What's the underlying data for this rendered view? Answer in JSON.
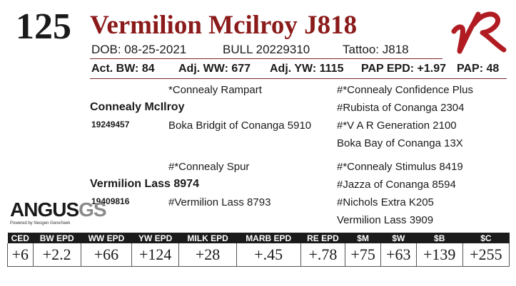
{
  "header": {
    "lot_number": "125",
    "animal_name": "Vermilion Mcilroy J818"
  },
  "info": {
    "dob": "DOB:   08-25-2021",
    "sex_reg": "BULL   20229310",
    "tattoo": "Tattoo:    J818"
  },
  "stats": {
    "act_bw": "Act. BW: 84",
    "adj_ww": "Adj. WW: 677",
    "adj_yw": "Adj. YW: 1115",
    "pap_epd": "PAP EPD: +1.97",
    "pap": "PAP: 48"
  },
  "pedigree": {
    "sire": {
      "name": "Connealy McIlroy",
      "reg": "19249457"
    },
    "sire_sire": "*Connealy Rampart",
    "sire_dam": "Boka Bridgit of Conanga 5910",
    "sire_sire_sire": "#*Connealy Confidence Plus",
    "sire_sire_dam": "#Rubista of Conanga 2304",
    "sire_dam_sire": "#*V A R Generation 2100",
    "sire_dam_dam": "Boka Bay of Conanga 13X",
    "dam": {
      "name": "Vermilion Lass 8974",
      "reg": "19409816"
    },
    "dam_sire": "#*Connealy Spur",
    "dam_dam": "#Vermilion Lass 8793",
    "dam_sire_sire": "#*Connealy Stimulus 8419",
    "dam_sire_dam": "#Jazza of Conanga 8594",
    "dam_dam_sire": "#Nichols Extra K205",
    "dam_dam_dam": "Vermilion Lass 3909"
  },
  "brand_logo": {
    "text": "ANGUSGS",
    "tagline": "Powered by Neogen GeneSeek"
  },
  "epd": {
    "headers": [
      "CED",
      "BW EPD",
      "WW EPD",
      "YW EPD",
      "MILK EPD",
      "MARB EPD",
      "RE EPD",
      "$M",
      "$W",
      "$B",
      "$C"
    ],
    "values": [
      "+6",
      "+2.2",
      "+66",
      "+124",
      "+28",
      "+.45",
      "+.78",
      "+75",
      "+63",
      "+139",
      "+255"
    ]
  },
  "colors": {
    "name_red": "#8b1a1a",
    "header_bar": "#1b1b1b"
  }
}
